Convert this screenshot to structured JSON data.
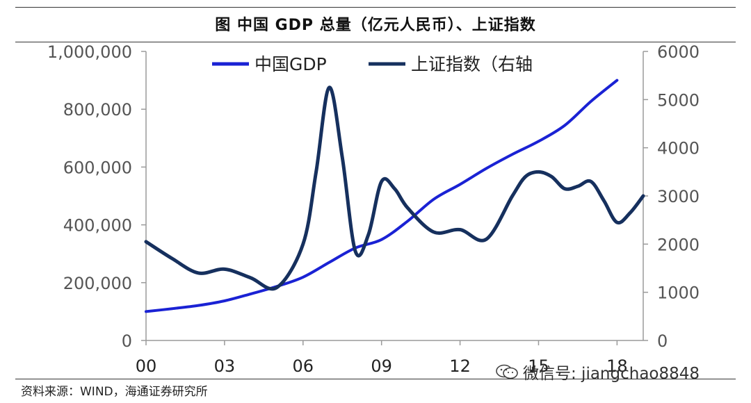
{
  "header": {
    "title": "图  中国 GDP 总量（亿元人民币）、上证指数"
  },
  "footer": {
    "source": "资料来源：WIND，海通证券研究所"
  },
  "watermark": {
    "text": "微信号: jiangchao8848",
    "icon": "wechat-icon"
  },
  "colors": {
    "gdp": "#1a22d4",
    "index": "#16305e",
    "axis": "#9a9a9a"
  },
  "chart_data": {
    "type": "line",
    "title": "图  中国 GDP 总量（亿元人民币）、上证指数",
    "x_tick_labels": [
      "00",
      "03",
      "06",
      "09",
      "12",
      "15",
      "18"
    ],
    "x_tick_years": [
      2000,
      2003,
      2006,
      2009,
      2012,
      2015,
      2018
    ],
    "xlim": [
      2000,
      2019
    ],
    "y_left": {
      "ylim": [
        0,
        1000000
      ],
      "ticks": [
        0,
        200000,
        400000,
        600000,
        800000,
        1000000
      ],
      "tick_labels": [
        "0",
        "200,000",
        "400,000",
        "600,000",
        "800,000",
        "1,000,000"
      ]
    },
    "y_right": {
      "ylim": [
        0,
        6000
      ],
      "ticks": [
        0,
        1000,
        2000,
        3000,
        4000,
        5000,
        6000
      ],
      "tick_labels": [
        "0",
        "1000",
        "2000",
        "3000",
        "4000",
        "5000",
        "6000"
      ]
    },
    "legend_position": "top",
    "series": [
      {
        "name": "中国GDP",
        "axis": "left",
        "x": [
          2000,
          2001,
          2002,
          2003,
          2004,
          2005,
          2006,
          2007,
          2008,
          2009,
          2010,
          2011,
          2012,
          2013,
          2014,
          2015,
          2016,
          2017,
          2018
        ],
        "values": [
          100000,
          110000,
          121000,
          137000,
          161000,
          187000,
          219000,
          270000,
          320000,
          349000,
          413000,
          489000,
          540000,
          595000,
          644000,
          689000,
          744000,
          827000,
          900000
        ]
      },
      {
        "name": "上证指数（右轴",
        "axis": "right",
        "x": [
          2000,
          2001,
          2002,
          2003,
          2004,
          2005,
          2006,
          2006.5,
          2007,
          2007.5,
          2008,
          2008.5,
          2009,
          2009.5,
          2010,
          2011,
          2012,
          2013,
          2014,
          2014.5,
          2015,
          2015.5,
          2016,
          2016.5,
          2017,
          2017.5,
          2018,
          2018.5,
          2019
        ],
        "values": [
          2050,
          1700,
          1400,
          1480,
          1300,
          1100,
          2000,
          3500,
          5250,
          3800,
          1850,
          2200,
          3300,
          3150,
          2750,
          2250,
          2300,
          2100,
          3000,
          3400,
          3500,
          3400,
          3150,
          3200,
          3300,
          2900,
          2450,
          2650,
          3000
        ]
      }
    ]
  }
}
